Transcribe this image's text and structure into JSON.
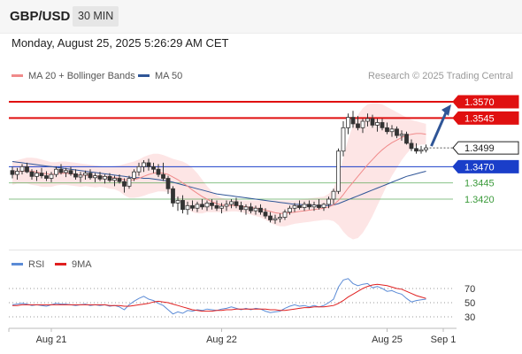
{
  "header": {
    "pair": "GBP/USD",
    "timeframe": "30 MIN"
  },
  "datetime": "Monday, August 25, 2025 5:26:29 AM CET",
  "legend": {
    "ma20": {
      "label": "MA 20 + Bollinger Bands",
      "color": "#f08a8a"
    },
    "ma50": {
      "label": "MA 50",
      "color": "#2f5597"
    }
  },
  "credit": "Research © 2025 Trading Central",
  "rsi_legend": {
    "rsi": {
      "label": "RSI",
      "color": "#5b8bd6"
    },
    "ma9": {
      "label": "9MA",
      "color": "#e02020"
    }
  },
  "colors": {
    "resistance": "#e01010",
    "current": "#222222",
    "pivot": "#1a3ec9",
    "support": "#3a9a3a",
    "arrow": "#2f5597",
    "bull": "#ffffff",
    "bear": "#333333",
    "band": "#fde2e2"
  },
  "chart_data": [
    {
      "type": "candlestick",
      "title": "GBP/USD",
      "timeframe": "30 MIN",
      "x_labels": [
        "Aug 21",
        "Aug 22",
        "Aug 25",
        "Sep 1"
      ],
      "levels": [
        {
          "value": 1.357,
          "label": "1.3570",
          "kind": "resistance"
        },
        {
          "value": 1.3545,
          "label": "1.3545",
          "kind": "resistance"
        },
        {
          "value": 1.3499,
          "label": "1.3499",
          "kind": "current"
        },
        {
          "value": 1.347,
          "label": "1.3470",
          "kind": "pivot"
        },
        {
          "value": 1.3445,
          "label": "1.3445",
          "kind": "support"
        },
        {
          "value": 1.342,
          "label": "1.3420",
          "kind": "support"
        }
      ],
      "arrow_target": 1.357,
      "ohlc": [
        [
          1.3464,
          1.347,
          1.3452,
          1.3458
        ],
        [
          1.3458,
          1.3468,
          1.345,
          1.3463
        ],
        [
          1.3463,
          1.3474,
          1.3458,
          1.347
        ],
        [
          1.347,
          1.3476,
          1.346,
          1.3462
        ],
        [
          1.3462,
          1.3466,
          1.345,
          1.3455
        ],
        [
          1.3455,
          1.3465,
          1.3448,
          1.346
        ],
        [
          1.346,
          1.3468,
          1.3452,
          1.3456
        ],
        [
          1.3456,
          1.3463,
          1.3448,
          1.3452
        ],
        [
          1.3452,
          1.3462,
          1.3446,
          1.3458
        ],
        [
          1.3458,
          1.347,
          1.3454,
          1.3466
        ],
        [
          1.3466,
          1.3474,
          1.3458,
          1.3461
        ],
        [
          1.3461,
          1.3468,
          1.3454,
          1.3464
        ],
        [
          1.3464,
          1.347,
          1.3456,
          1.3459
        ],
        [
          1.3459,
          1.3466,
          1.345,
          1.3454
        ],
        [
          1.3454,
          1.3462,
          1.3446,
          1.3457
        ],
        [
          1.3457,
          1.3464,
          1.345,
          1.346
        ],
        [
          1.346,
          1.3466,
          1.345,
          1.3453
        ],
        [
          1.3453,
          1.346,
          1.3446,
          1.3456
        ],
        [
          1.3456,
          1.3462,
          1.3448,
          1.3451
        ],
        [
          1.3451,
          1.3458,
          1.3444,
          1.3455
        ],
        [
          1.3455,
          1.346,
          1.3446,
          1.3449
        ],
        [
          1.3449,
          1.3456,
          1.344,
          1.3452
        ],
        [
          1.3452,
          1.3458,
          1.3444,
          1.3447
        ],
        [
          1.3447,
          1.3452,
          1.343,
          1.344
        ],
        [
          1.344,
          1.3456,
          1.3436,
          1.3452
        ],
        [
          1.3452,
          1.3466,
          1.3448,
          1.3462
        ],
        [
          1.3462,
          1.3476,
          1.3456,
          1.347
        ],
        [
          1.347,
          1.348,
          1.3462,
          1.3476
        ],
        [
          1.3476,
          1.3482,
          1.3464,
          1.347
        ],
        [
          1.347,
          1.3476,
          1.346,
          1.3466
        ],
        [
          1.3466,
          1.3474,
          1.3454,
          1.3458
        ],
        [
          1.3458,
          1.3476,
          1.3448,
          1.3452
        ],
        [
          1.3452,
          1.3456,
          1.3428,
          1.3436
        ],
        [
          1.3436,
          1.344,
          1.3408,
          1.3414
        ],
        [
          1.3414,
          1.3424,
          1.3402,
          1.3418
        ],
        [
          1.3418,
          1.3426,
          1.3398,
          1.3404
        ],
        [
          1.3404,
          1.3416,
          1.3396,
          1.341
        ],
        [
          1.341,
          1.3418,
          1.3402,
          1.3406
        ],
        [
          1.3406,
          1.3416,
          1.34,
          1.3412
        ],
        [
          1.3412,
          1.342,
          1.3404,
          1.3408
        ],
        [
          1.3408,
          1.3418,
          1.3402,
          1.3414
        ],
        [
          1.3414,
          1.342,
          1.3404,
          1.341
        ],
        [
          1.341,
          1.3418,
          1.3402,
          1.3406
        ],
        [
          1.3406,
          1.3414,
          1.3398,
          1.3409
        ],
        [
          1.3409,
          1.3418,
          1.3402,
          1.3412
        ],
        [
          1.3412,
          1.342,
          1.3406,
          1.3416
        ],
        [
          1.3416,
          1.3422,
          1.3406,
          1.341
        ],
        [
          1.341,
          1.3416,
          1.34,
          1.3404
        ],
        [
          1.3404,
          1.3412,
          1.3396,
          1.3408
        ],
        [
          1.3408,
          1.3414,
          1.3398,
          1.3402
        ],
        [
          1.3402,
          1.341,
          1.3396,
          1.3406
        ],
        [
          1.3406,
          1.3412,
          1.3396,
          1.34
        ],
        [
          1.34,
          1.3406,
          1.339,
          1.3394
        ],
        [
          1.3394,
          1.34,
          1.3384,
          1.3388
        ],
        [
          1.3388,
          1.3396,
          1.3382,
          1.339
        ],
        [
          1.339,
          1.3398,
          1.3384,
          1.3392
        ],
        [
          1.3392,
          1.3404,
          1.3388,
          1.34
        ],
        [
          1.34,
          1.341,
          1.3396,
          1.3406
        ],
        [
          1.3406,
          1.3414,
          1.34,
          1.341
        ],
        [
          1.341,
          1.3418,
          1.3404,
          1.3407
        ],
        [
          1.3407,
          1.3416,
          1.3402,
          1.3412
        ],
        [
          1.3412,
          1.3418,
          1.3404,
          1.3408
        ],
        [
          1.3408,
          1.3416,
          1.3402,
          1.3411
        ],
        [
          1.3411,
          1.342,
          1.3404,
          1.3407
        ],
        [
          1.3407,
          1.3414,
          1.3402,
          1.3412
        ],
        [
          1.3412,
          1.3424,
          1.3406,
          1.342
        ],
        [
          1.342,
          1.3436,
          1.3412,
          1.3432
        ],
        [
          1.3432,
          1.3498,
          1.3428,
          1.3494
        ],
        [
          1.3494,
          1.354,
          1.3486,
          1.353
        ],
        [
          1.353,
          1.3552,
          1.352,
          1.3546
        ],
        [
          1.3546,
          1.3556,
          1.353,
          1.3536
        ],
        [
          1.3536,
          1.3548,
          1.3526,
          1.353
        ],
        [
          1.353,
          1.3544,
          1.3522,
          1.354
        ],
        [
          1.354,
          1.3552,
          1.3532,
          1.3544
        ],
        [
          1.3544,
          1.355,
          1.353,
          1.3534
        ],
        [
          1.3534,
          1.3544,
          1.3524,
          1.3538
        ],
        [
          1.3538,
          1.3544,
          1.3526,
          1.353
        ],
        [
          1.353,
          1.3538,
          1.352,
          1.3524
        ],
        [
          1.3524,
          1.3534,
          1.3516,
          1.3528
        ],
        [
          1.3528,
          1.3532,
          1.3514,
          1.3518
        ],
        [
          1.3518,
          1.3526,
          1.351,
          1.352
        ],
        [
          1.352,
          1.3524,
          1.3504,
          1.3506
        ],
        [
          1.3506,
          1.3512,
          1.3494,
          1.3498
        ],
        [
          1.3498,
          1.3506,
          1.349,
          1.3494
        ],
        [
          1.3494,
          1.3502,
          1.349,
          1.3496
        ],
        [
          1.3496,
          1.3504,
          1.3492,
          1.3499
        ]
      ],
      "ma20": [
        1.346,
        1.3462,
        1.3463,
        1.3464,
        1.3463,
        1.3462,
        1.346,
        1.3459,
        1.3458,
        1.3459,
        1.346,
        1.346,
        1.3459,
        1.3458,
        1.3457,
        1.3457,
        1.3456,
        1.3455,
        1.3455,
        1.3454,
        1.3453,
        1.3453,
        1.3452,
        1.345,
        1.3449,
        1.345,
        1.3452,
        1.3455,
        1.3458,
        1.346,
        1.3461,
        1.346,
        1.3458,
        1.3454,
        1.345,
        1.3445,
        1.344,
        1.3434,
        1.3429,
        1.3424,
        1.342,
        1.3416,
        1.3413,
        1.3411,
        1.341,
        1.341,
        1.341,
        1.3409,
        1.3408,
        1.3407,
        1.3406,
        1.3405,
        1.3403,
        1.3401,
        1.3399,
        1.3398,
        1.3398,
        1.3399,
        1.34,
        1.3401,
        1.3402,
        1.3403,
        1.3404,
        1.3405,
        1.3406,
        1.3408,
        1.3411,
        1.3418,
        1.3427,
        1.3437,
        1.3446,
        1.3455,
        1.3464,
        1.3473,
        1.3481,
        1.3489,
        1.3496,
        1.3502,
        1.3507,
        1.3511,
        1.3515,
        1.3518,
        1.352,
        1.3521,
        1.3521,
        1.352
      ],
      "ma50": [
        1.3478,
        1.3477,
        1.3476,
        1.3475,
        1.3474,
        1.3473,
        1.3472,
        1.3471,
        1.347,
        1.3469,
        1.3468,
        1.3467,
        1.3466,
        1.3465,
        1.3464,
        1.3463,
        1.3462,
        1.3461,
        1.346,
        1.3459,
        1.3458,
        1.3457,
        1.3456,
        1.3455,
        1.3454,
        1.3453,
        1.3453,
        1.3452,
        1.3452,
        1.3451,
        1.345,
        1.3449,
        1.3448,
        1.3446,
        1.3444,
        1.3442,
        1.344,
        1.3438,
        1.3436,
        1.3434,
        1.3432,
        1.343,
        1.3428,
        1.3427,
        1.3426,
        1.3425,
        1.3424,
        1.3423,
        1.3422,
        1.3421,
        1.342,
        1.3419,
        1.3418,
        1.3417,
        1.3416,
        1.3415,
        1.3414,
        1.3413,
        1.3412,
        1.3412,
        1.3411,
        1.3411,
        1.341,
        1.341,
        1.341,
        1.341,
        1.3411,
        1.3413,
        1.3416,
        1.3419,
        1.3422,
        1.3425,
        1.3428,
        1.3431,
        1.3434,
        1.3437,
        1.344,
        1.3443,
        1.3446,
        1.3449,
        1.3452,
        1.3455,
        1.3457,
        1.3459,
        1.3461,
        1.3463
      ],
      "bb_upper": [
        1.3478,
        1.348,
        1.3482,
        1.3484,
        1.3484,
        1.3483,
        1.3481,
        1.3479,
        1.3477,
        1.3477,
        1.3478,
        1.3478,
        1.3477,
        1.3476,
        1.3475,
        1.3474,
        1.3473,
        1.3472,
        1.3471,
        1.347,
        1.347,
        1.3471,
        1.3472,
        1.3474,
        1.3476,
        1.3478,
        1.3481,
        1.3485,
        1.3488,
        1.349,
        1.349,
        1.3488,
        1.3485,
        1.3482,
        1.348,
        1.3478,
        1.3474,
        1.3468,
        1.346,
        1.345,
        1.344,
        1.3432,
        1.3426,
        1.3422,
        1.342,
        1.3419,
        1.3419,
        1.3418,
        1.3418,
        1.3418,
        1.3418,
        1.3418,
        1.3418,
        1.3418,
        1.3418,
        1.3418,
        1.3418,
        1.3418,
        1.3418,
        1.3419,
        1.342,
        1.3421,
        1.3422,
        1.3423,
        1.3424,
        1.3428,
        1.3436,
        1.3456,
        1.3484,
        1.3512,
        1.3534,
        1.355,
        1.356,
        1.3566,
        1.3568,
        1.3568,
        1.3566,
        1.3562,
        1.3558,
        1.3554,
        1.355,
        1.3546,
        1.3542,
        1.354,
        1.3538,
        1.3536
      ],
      "bb_lower": [
        1.3442,
        1.3444,
        1.3444,
        1.3444,
        1.3442,
        1.3441,
        1.3439,
        1.3439,
        1.3439,
        1.3441,
        1.3442,
        1.3442,
        1.3441,
        1.344,
        1.3439,
        1.344,
        1.3439,
        1.3438,
        1.3439,
        1.3438,
        1.3436,
        1.3435,
        1.3432,
        1.3426,
        1.3422,
        1.3422,
        1.3423,
        1.3425,
        1.3428,
        1.343,
        1.3432,
        1.3432,
        1.3431,
        1.3426,
        1.342,
        1.3412,
        1.3406,
        1.34,
        1.3398,
        1.3398,
        1.34,
        1.34,
        1.34,
        1.34,
        1.34,
        1.3401,
        1.3401,
        1.34,
        1.3398,
        1.3396,
        1.3394,
        1.3392,
        1.3388,
        1.3384,
        1.338,
        1.3378,
        1.3378,
        1.338,
        1.3382,
        1.3383,
        1.3384,
        1.3385,
        1.3386,
        1.3387,
        1.3388,
        1.3388,
        1.3386,
        1.338,
        1.337,
        1.3362,
        1.3358,
        1.336,
        1.3368,
        1.338,
        1.3394,
        1.341,
        1.3426,
        1.3442,
        1.3456,
        1.3468,
        1.348,
        1.349,
        1.3498,
        1.3502,
        1.3504,
        1.3504
      ]
    },
    {
      "type": "line",
      "title": "RSI",
      "y_ticks": [
        70,
        50,
        30
      ],
      "ylim": [
        20,
        80
      ],
      "series": [
        {
          "name": "RSI",
          "values": [
            47,
            48,
            49,
            48,
            46,
            47,
            46,
            45,
            47,
            49,
            48,
            48,
            47,
            46,
            47,
            48,
            46,
            47,
            46,
            47,
            45,
            46,
            44,
            40,
            47,
            52,
            56,
            59,
            55,
            53,
            49,
            46,
            40,
            34,
            37,
            35,
            39,
            38,
            40,
            39,
            41,
            40,
            39,
            41,
            42,
            44,
            42,
            40,
            42,
            40,
            42,
            41,
            38,
            36,
            37,
            38,
            42,
            45,
            47,
            45,
            46,
            44,
            46,
            44,
            46,
            50,
            55,
            72,
            82,
            84,
            77,
            74,
            76,
            77,
            71,
            73,
            70,
            66,
            67,
            64,
            62,
            56,
            51,
            53,
            54,
            55
          ]
        },
        {
          "name": "9MA",
          "values": [
            46,
            46,
            47,
            47,
            47,
            47,
            47,
            47,
            47,
            47,
            47,
            47,
            47,
            47,
            47,
            47,
            47,
            47,
            47,
            47,
            46,
            46,
            46,
            45,
            45,
            46,
            47,
            48,
            49,
            51,
            52,
            51,
            50,
            48,
            46,
            44,
            42,
            40,
            39,
            38,
            38,
            38,
            39,
            39,
            40,
            40,
            41,
            41,
            41,
            41,
            41,
            41,
            41,
            40,
            40,
            39,
            39,
            40,
            41,
            42,
            43,
            43,
            44,
            44,
            44,
            45,
            46,
            49,
            53,
            58,
            62,
            66,
            70,
            73,
            75,
            76,
            75,
            74,
            72,
            70,
            69,
            66,
            63,
            60,
            58,
            56
          ]
        }
      ]
    }
  ]
}
